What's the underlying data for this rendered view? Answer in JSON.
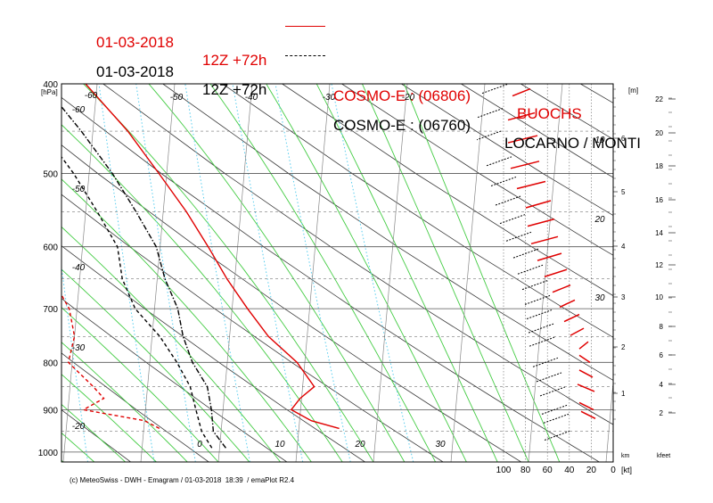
{
  "legend": [
    {
      "date": "01-03-2018",
      "run": "12Z +72h",
      "model": "COSMO-E : (06806)",
      "station": "BUOCHS",
      "color": "#e00000",
      "line": "solid"
    },
    {
      "date": "01-03-2018",
      "run": "12Z +72h",
      "model": "COSMO-E : (06760)",
      "station": "LOCARNO / MONTI",
      "color": "#000000",
      "line": "dashdot"
    }
  ],
  "footer": "(c) MeteoSwiss - DWH - Emagram / 01-03-2018  18:39  / emaPlot R2.4",
  "chart_data": {
    "type": "line",
    "chart_kind": "emagram",
    "y_axis": {
      "label": "[hPa]",
      "scale": "log",
      "range": [
        1025,
        400
      ],
      "ticks": [
        400,
        500,
        600,
        700,
        800,
        900,
        1000
      ]
    },
    "isotherm_labels": [
      -60,
      -50,
      -40,
      -30,
      -20,
      -10,
      0,
      10,
      20,
      30
    ],
    "height_m_axis": {
      "label": "[m]",
      "ticks": [
        1,
        2,
        3,
        4,
        5,
        6
      ],
      "unit_label": "km"
    },
    "height_ft_axis": {
      "label": "kfeet",
      "ticks": [
        2,
        4,
        6,
        8,
        10,
        12,
        14,
        16,
        18,
        20,
        22
      ]
    },
    "wind_axis": {
      "unit": "[kt]",
      "ticks": [
        100,
        80,
        60,
        40,
        20,
        0
      ]
    },
    "mixing_ratio_labels": [
      10,
      20,
      30
    ],
    "colors": {
      "buochs": "#e00000",
      "locarno": "#000000",
      "dry_adiabat": "#3a3a3a",
      "moist_adiabat": "#44cc44",
      "mixing_ratio": "#55ccee",
      "grid": "#555555"
    },
    "series": [
      {
        "name": "BUOCHS",
        "kind": "temperature",
        "points": [
          [
            943,
            15.2
          ],
          [
            925,
            11.5
          ],
          [
            900,
            8.8
          ],
          [
            875,
            9.8
          ],
          [
            850,
            11.5
          ],
          [
            800,
            9.0
          ],
          [
            750,
            5.0
          ],
          [
            700,
            2.0
          ],
          [
            650,
            -1.0
          ],
          [
            600,
            -3.8
          ],
          [
            550,
            -7.0
          ],
          [
            500,
            -11.0
          ],
          [
            450,
            -15.5
          ],
          [
            400,
            -21.5
          ]
        ]
      },
      {
        "name": "BUOCHS",
        "kind": "dewpoint",
        "points": [
          [
            943,
            -8.0
          ],
          [
            925,
            -10.0
          ],
          [
            900,
            -18.0
          ],
          [
            875,
            -15.5
          ],
          [
            850,
            -17.0
          ],
          [
            800,
            -20.5
          ],
          [
            750,
            -20.0
          ],
          [
            700,
            -21.0
          ],
          [
            650,
            -23.5
          ],
          [
            600,
            -24.5
          ],
          [
            550,
            -27.0
          ],
          [
            500,
            -29.0
          ],
          [
            450,
            -33.0
          ],
          [
            400,
            -36.0
          ]
        ]
      },
      {
        "name": "LOCARNO / MONTI",
        "kind": "temperature",
        "points": [
          [
            990,
            0.8
          ],
          [
            950,
            -1.0
          ],
          [
            900,
            -1.5
          ],
          [
            850,
            -2.3
          ],
          [
            800,
            -4.5
          ],
          [
            750,
            -6.0
          ],
          [
            700,
            -7.0
          ],
          [
            650,
            -9.0
          ],
          [
            600,
            -10.5
          ],
          [
            550,
            -13.5
          ],
          [
            500,
            -17.0
          ],
          [
            450,
            -21.5
          ],
          [
            400,
            -27.0
          ]
        ]
      },
      {
        "name": "LOCARNO / MONTI",
        "kind": "dewpoint",
        "points": [
          [
            990,
            -1.0
          ],
          [
            950,
            -2.5
          ],
          [
            900,
            -3.5
          ],
          [
            850,
            -4.5
          ],
          [
            800,
            -6.5
          ],
          [
            750,
            -9.0
          ],
          [
            700,
            -12.5
          ],
          [
            650,
            -14.5
          ],
          [
            600,
            -15.5
          ],
          [
            550,
            -18.5
          ],
          [
            500,
            -22.0
          ],
          [
            450,
            -26.5
          ],
          [
            400,
            -32.0
          ]
        ]
      }
    ]
  }
}
